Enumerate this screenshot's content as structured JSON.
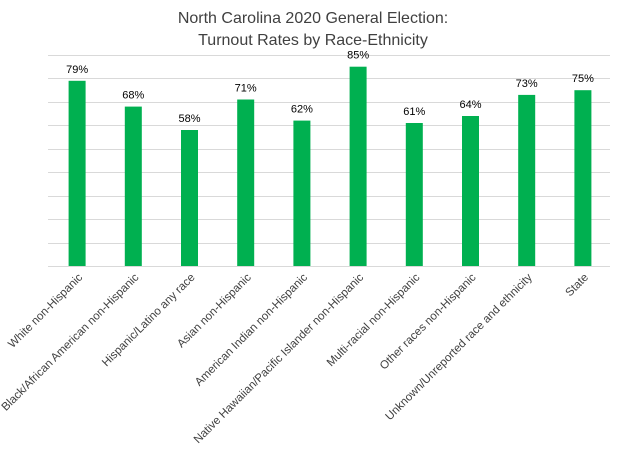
{
  "chart_data": {
    "type": "bar",
    "title_line1": "North Carolina 2020 General Election:",
    "title_line2": "Turnout Rates by Race-Ethnicity",
    "categories": [
      "White non-Hispanic",
      "Black/African American non-Hispanic",
      "Hispanic/Latino any race",
      "Asian non-Hispanic",
      "American Indian non-Hispanic",
      "Native Hawaiian/Pacific Islander non-Hispanic",
      "Multi-racial non-Hispanic",
      "Other races non-Hispanic",
      "Unknown/Unreported race and ethnicity",
      "State"
    ],
    "values": [
      79,
      68,
      58,
      71,
      62,
      85,
      61,
      64,
      73,
      75
    ],
    "value_labels": [
      "79%",
      "68%",
      "58%",
      "71%",
      "62%",
      "85%",
      "61%",
      "64%",
      "73%",
      "75%"
    ],
    "ylim": [
      0,
      90
    ],
    "grid": true,
    "y_axis_labels_shown": false,
    "bar_color": "#00b050",
    "grid_color": "#d9d9d9"
  }
}
